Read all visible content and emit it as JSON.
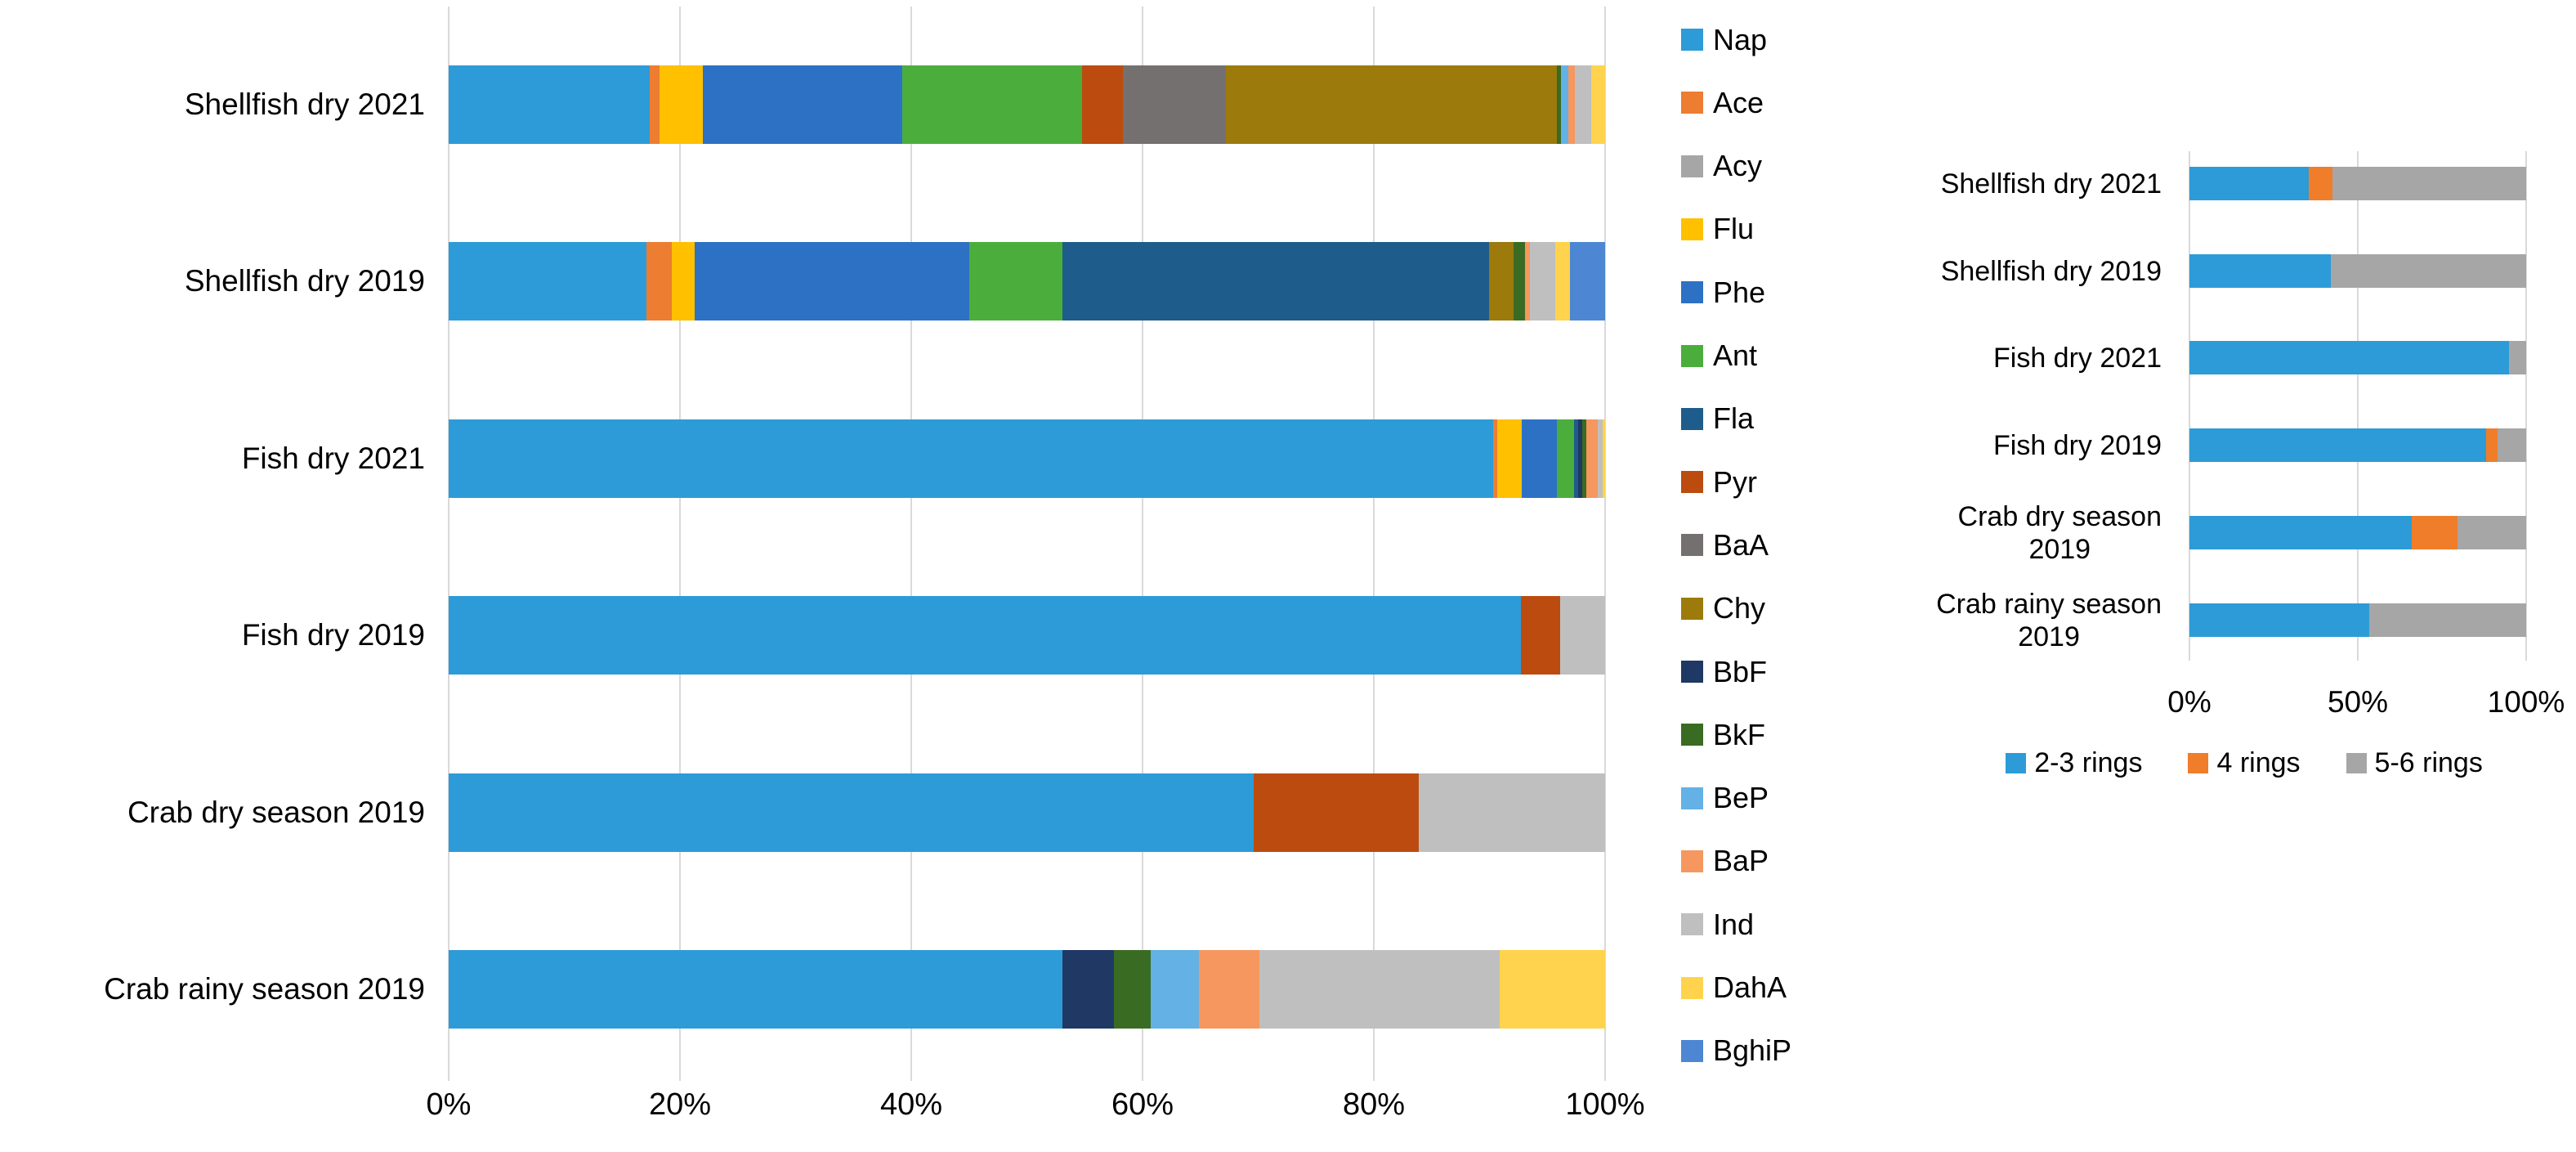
{
  "chart_data": [
    {
      "id": "pah_composition",
      "type": "bar",
      "subtype": "stacked-horizontal-100pct",
      "grid": true,
      "grid_color": "#D9D9D9",
      "text_color": "#000000",
      "legend_position": "right",
      "xlim": [
        0,
        100
      ],
      "x_ticks": [
        "0%",
        "20%",
        "40%",
        "60%",
        "80%",
        "100%"
      ],
      "categories": [
        "Shellfish dry 2021",
        "Shellfish dry 2019",
        "Fish dry 2021",
        "Fish dry 2019",
        "Crab dry season 2019",
        "Crab rainy season 2019"
      ],
      "series": [
        {
          "name": "Nap",
          "color": "#2D9BD7",
          "values": [
            17.4,
            17.1,
            90.3,
            92.7,
            69.6,
            53.1
          ]
        },
        {
          "name": "Ace",
          "color": "#ED7D31",
          "values": [
            0.8,
            2.2,
            0.4,
            0,
            0,
            0
          ]
        },
        {
          "name": "Acy",
          "color": "#A6A6A6",
          "values": [
            0,
            0,
            0,
            0,
            0,
            0
          ]
        },
        {
          "name": "Flu",
          "color": "#FFC000",
          "values": [
            3.8,
            2.0,
            2.1,
            0,
            0,
            0
          ]
        },
        {
          "name": "Phe",
          "color": "#2C71C4",
          "values": [
            17.2,
            23.7,
            3.0,
            0,
            0,
            0
          ]
        },
        {
          "name": "Ant",
          "color": "#4BAE3C",
          "values": [
            15.6,
            8.1,
            1.5,
            0,
            0,
            0
          ]
        },
        {
          "name": "Fla",
          "color": "#1E5C8B",
          "values": [
            0,
            36.9,
            0.4,
            0,
            0,
            0
          ]
        },
        {
          "name": "Pyr",
          "color": "#BC4B10",
          "values": [
            3.5,
            0,
            0,
            3.4,
            14.3,
            0
          ]
        },
        {
          "name": "BaA",
          "color": "#757070",
          "values": [
            8.9,
            0,
            0,
            0,
            0,
            0
          ]
        },
        {
          "name": "Chy",
          "color": "#9C7A0B",
          "values": [
            28.6,
            2.1,
            0,
            0,
            0,
            0
          ]
        },
        {
          "name": "BbF",
          "color": "#1F3864",
          "values": [
            0,
            0,
            0.3,
            0,
            0,
            4.4
          ]
        },
        {
          "name": "BkF",
          "color": "#3A6B22",
          "values": [
            0.4,
            1.0,
            0.4,
            0,
            0,
            3.2
          ]
        },
        {
          "name": "BeP",
          "color": "#63B1E5",
          "values": [
            0.6,
            0,
            0,
            0,
            0,
            4.2
          ]
        },
        {
          "name": "BaP",
          "color": "#F5975F",
          "values": [
            0.6,
            0.4,
            1.0,
            0,
            0,
            5.2
          ]
        },
        {
          "name": "Ind",
          "color": "#BFBFBF",
          "values": [
            1.4,
            2.2,
            0.4,
            3.9,
            16.1,
            20.8
          ]
        },
        {
          "name": "DahA",
          "color": "#FFD34D",
          "values": [
            1.2,
            1.3,
            0.2,
            0,
            0,
            9.1
          ]
        },
        {
          "name": "BghiP",
          "color": "#4D87D3",
          "values": [
            0,
            3.0,
            0,
            0,
            0,
            0
          ]
        }
      ]
    },
    {
      "id": "ring_distribution",
      "type": "bar",
      "subtype": "stacked-horizontal-100pct",
      "grid": true,
      "grid_color": "#D9D9D9",
      "text_color": "#000000",
      "legend_position": "bottom",
      "xlim": [
        0,
        100
      ],
      "x_ticks": [
        "0%",
        "50%",
        "100%"
      ],
      "categories": [
        "Shellfish dry 2021",
        "Shellfish dry 2019",
        "Fish dry 2021",
        "Fish dry 2019",
        "Crab dry season\n2019",
        "Crab rainy season\n2019"
      ],
      "series": [
        {
          "name": "2-3 rings",
          "color": "#2D9BD7",
          "values": [
            35.5,
            42,
            95,
            88,
            66,
            53.5
          ]
        },
        {
          "name": "4 rings",
          "color": "#F07D29",
          "values": [
            7,
            0,
            0,
            3.5,
            13.5,
            0
          ]
        },
        {
          "name": "5-6 rings",
          "color": "#A6A6A6",
          "values": [
            57.5,
            58,
            5,
            8.5,
            20.5,
            46.5
          ]
        }
      ]
    }
  ]
}
